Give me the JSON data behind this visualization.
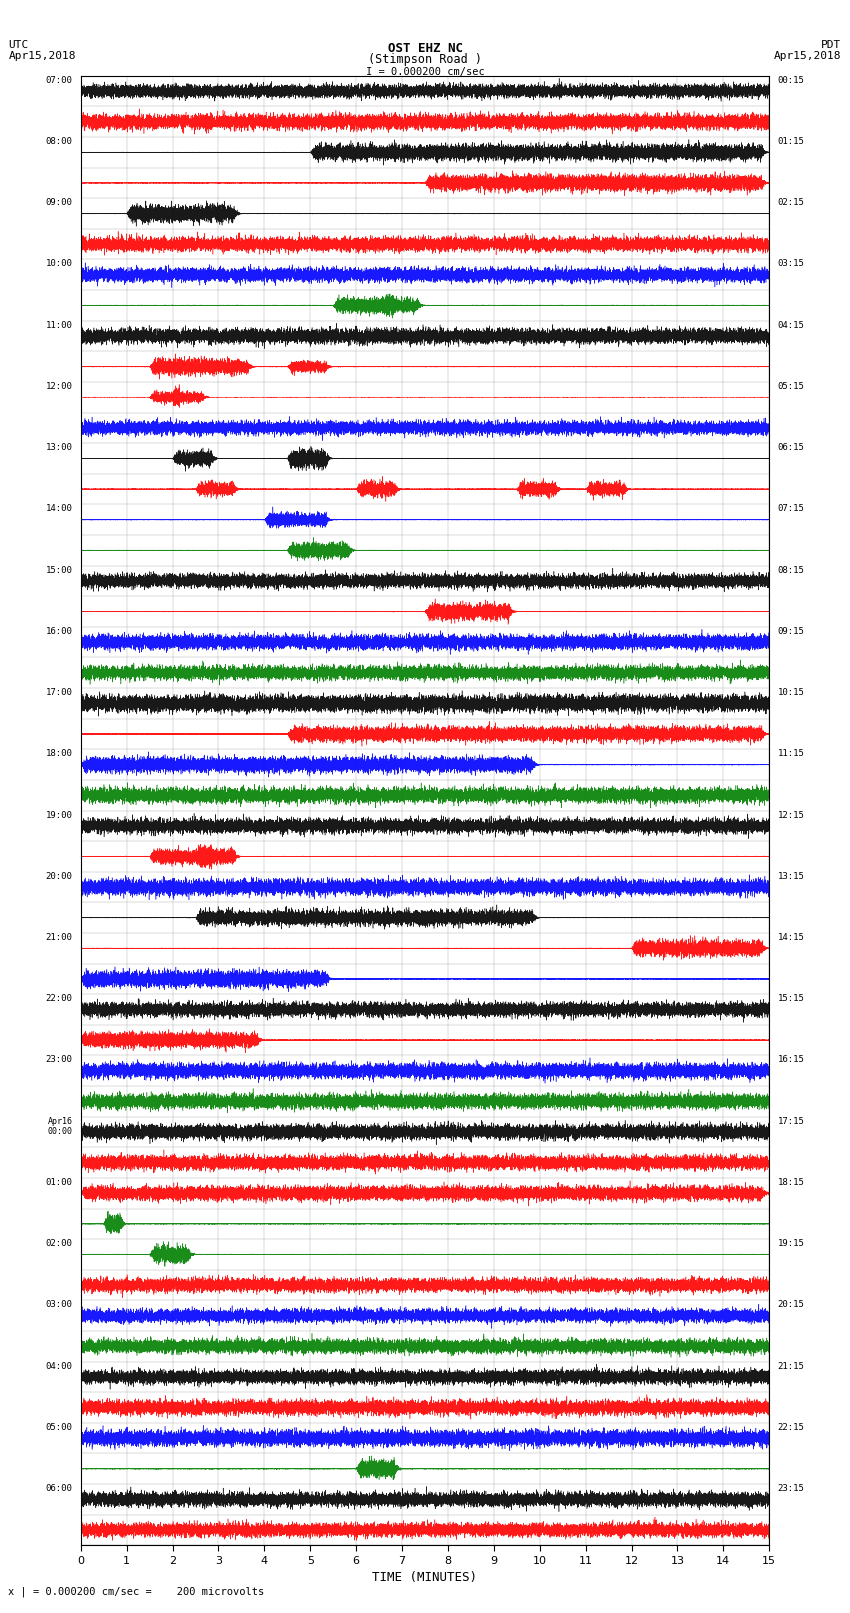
{
  "title_line1": "OST EHZ NC",
  "title_line2": "(Stimpson Road )",
  "title_line3": "I = 0.000200 cm/sec",
  "left_header1": "UTC",
  "left_header2": "Apr15,2018",
  "right_header1": "PDT",
  "right_header2": "Apr15,2018",
  "xlabel": "TIME (MINUTES)",
  "footnote": "x | = 0.000200 cm/sec =    200 microvolts",
  "xlim": [
    0,
    15
  ],
  "xticks": [
    0,
    1,
    2,
    3,
    4,
    5,
    6,
    7,
    8,
    9,
    10,
    11,
    12,
    13,
    14,
    15
  ],
  "background_color": "#ffffff",
  "grid_color": "#aaaaaa",
  "colors_cycle": [
    "black",
    "red",
    "blue",
    "green"
  ],
  "utc_labels": [
    "07:00",
    "08:00",
    "09:00",
    "10:00",
    "11:00",
    "12:00",
    "13:00",
    "14:00",
    "15:00",
    "16:00",
    "17:00",
    "18:00",
    "19:00",
    "20:00",
    "21:00",
    "22:00",
    "23:00",
    "Apr16\n00:00",
    "01:00",
    "02:00",
    "03:00",
    "04:00",
    "05:00",
    "06:00"
  ],
  "pdt_labels": [
    "00:15",
    "01:15",
    "02:15",
    "03:15",
    "04:15",
    "05:15",
    "06:15",
    "07:15",
    "08:15",
    "09:15",
    "10:15",
    "11:15",
    "12:15",
    "13:15",
    "14:15",
    "15:15",
    "16:15",
    "17:15",
    "18:15",
    "19:15",
    "20:15",
    "21:15",
    "22:15",
    "23:15"
  ],
  "num_hours": 24,
  "rows_per_hour": 2,
  "trace_duration_minutes": 15,
  "sample_rate": 50
}
